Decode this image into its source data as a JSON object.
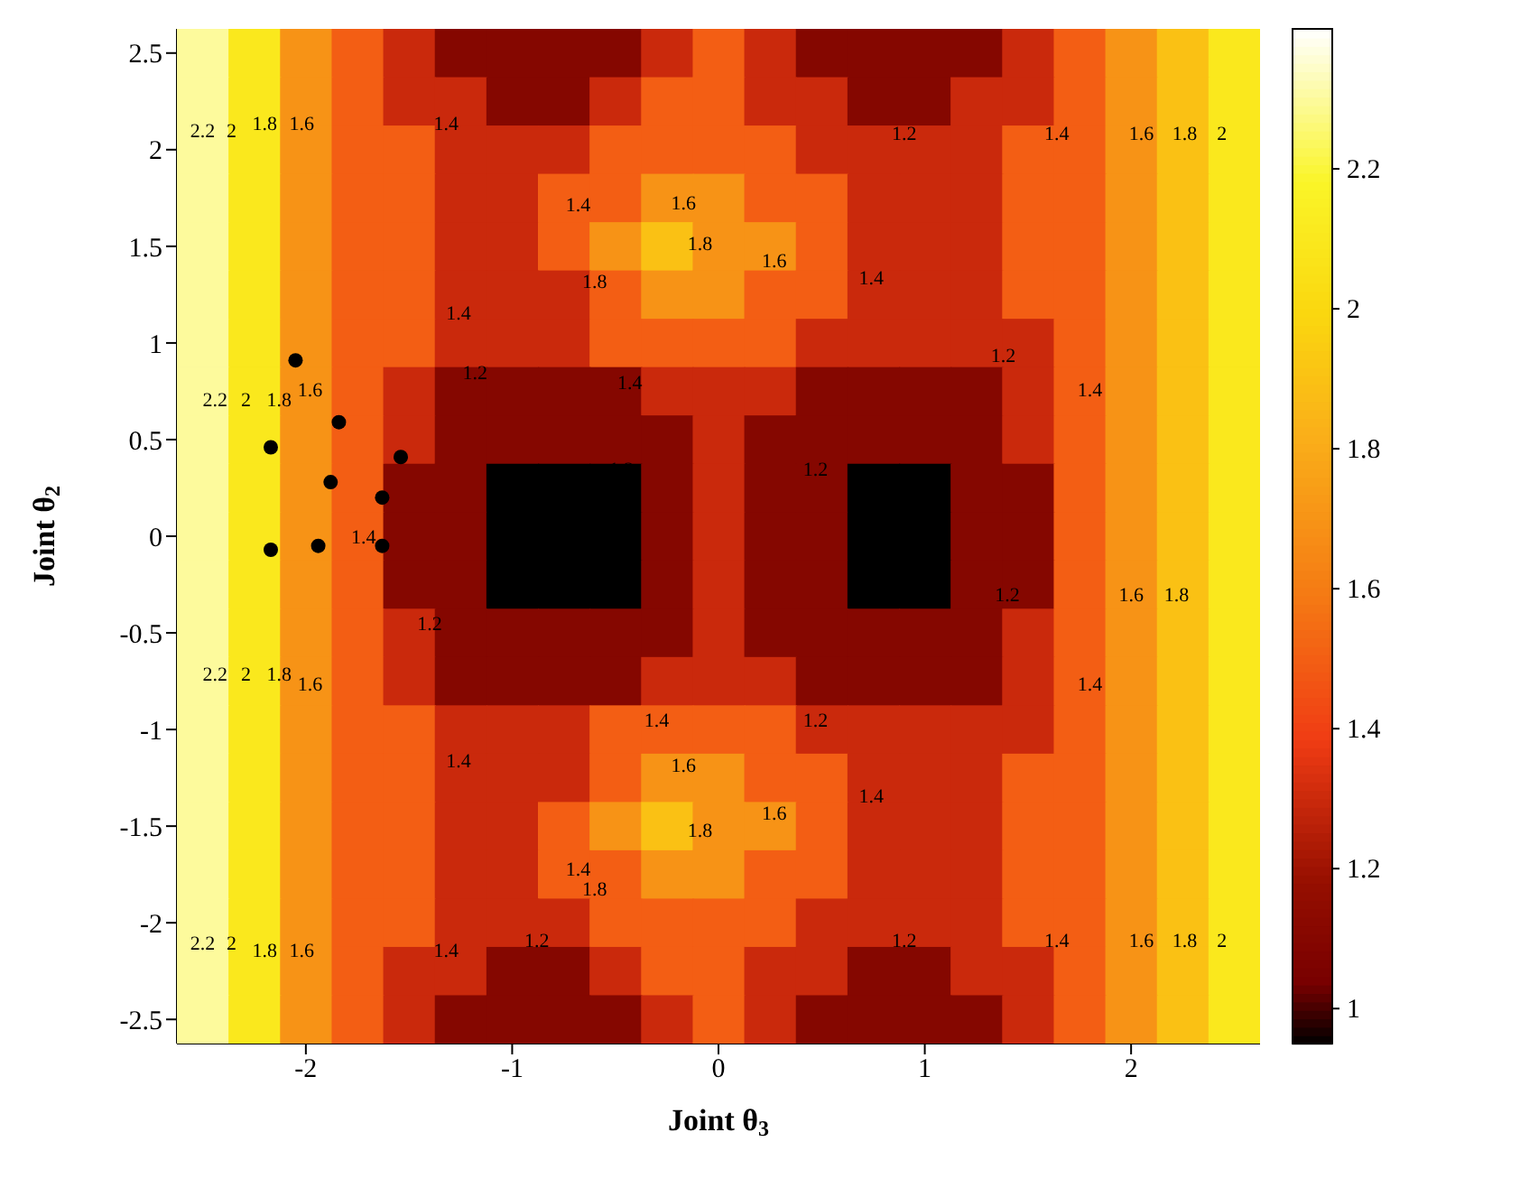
{
  "chart_data": {
    "type": "heatmap",
    "xlabel": "Joint θ$_{3}$",
    "ylabel": "Joint θ$_{2}$",
    "categories": [
      null,
      null,
      "-2",
      null,
      null,
      null,
      "-1",
      null,
      null,
      null,
      "0",
      null,
      null,
      null,
      "1",
      null,
      null,
      null,
      "2",
      null,
      null
    ],
    "y_categories": [
      "2.5",
      null,
      "2",
      null,
      "1.5",
      null,
      "1",
      null,
      "0.5",
      null,
      "0",
      null,
      "-0.5",
      null,
      "-1",
      null,
      "-1.5",
      null,
      "-2",
      null,
      "-2.5"
    ],
    "clim": [
      0.95,
      2.4
    ],
    "cticks": [
      1,
      1.2,
      1.4,
      1.6,
      1.8,
      2,
      2.2
    ],
    "cells": [
      [
        2.3,
        2.1,
        1.7,
        1.5,
        1.3,
        1.1,
        1.1,
        1.1,
        1.1,
        1.3,
        1.5,
        1.3,
        1.1,
        1.1,
        1.1,
        1.1,
        1.3,
        1.5,
        1.7,
        1.9,
        2.1
      ],
      [
        2.3,
        2.1,
        1.7,
        1.5,
        1.3,
        1.3,
        1.1,
        1.1,
        1.3,
        1.5,
        1.5,
        1.3,
        1.3,
        1.1,
        1.1,
        1.3,
        1.3,
        1.5,
        1.7,
        1.9,
        2.1
      ],
      [
        2.3,
        2.1,
        1.7,
        1.5,
        1.5,
        1.3,
        1.3,
        1.3,
        1.5,
        1.5,
        1.5,
        1.5,
        1.3,
        1.3,
        1.3,
        1.3,
        1.5,
        1.5,
        1.7,
        1.9,
        2.1
      ],
      [
        2.3,
        2.1,
        1.7,
        1.5,
        1.5,
        1.3,
        1.3,
        1.5,
        1.5,
        1.7,
        1.7,
        1.5,
        1.5,
        1.3,
        1.3,
        1.3,
        1.5,
        1.5,
        1.7,
        1.9,
        2.1
      ],
      [
        2.3,
        2.1,
        1.7,
        1.5,
        1.5,
        1.3,
        1.3,
        1.5,
        1.7,
        1.9,
        1.7,
        1.7,
        1.5,
        1.3,
        1.3,
        1.3,
        1.5,
        1.5,
        1.7,
        1.9,
        2.1
      ],
      [
        2.3,
        2.1,
        1.7,
        1.5,
        1.5,
        1.3,
        1.3,
        1.3,
        1.5,
        1.7,
        1.7,
        1.5,
        1.5,
        1.3,
        1.3,
        1.3,
        1.5,
        1.5,
        1.7,
        1.9,
        2.1
      ],
      [
        2.3,
        2.1,
        1.7,
        1.5,
        1.5,
        1.3,
        1.3,
        1.3,
        1.5,
        1.5,
        1.5,
        1.5,
        1.3,
        1.3,
        1.3,
        1.3,
        1.3,
        1.5,
        1.7,
        1.9,
        2.1
      ],
      [
        2.3,
        2.1,
        1.7,
        1.5,
        1.3,
        1.1,
        1.1,
        1.1,
        1.1,
        1.3,
        1.3,
        1.3,
        1.1,
        1.1,
        1.1,
        1.1,
        1.3,
        1.5,
        1.7,
        1.9,
        2.1
      ],
      [
        2.3,
        2.1,
        1.7,
        1.5,
        1.3,
        1.1,
        1.1,
        1.1,
        1.1,
        1.1,
        1.3,
        1.1,
        1.1,
        1.1,
        1.1,
        1.1,
        1.3,
        1.5,
        1.7,
        1.9,
        2.1
      ],
      [
        2.3,
        2.1,
        1.7,
        1.5,
        1.1,
        1.1,
        0.9,
        0.9,
        0.9,
        1.1,
        1.3,
        1.1,
        1.1,
        0.9,
        0.9,
        1.1,
        1.1,
        1.5,
        1.7,
        1.9,
        2.1
      ],
      [
        2.3,
        2.1,
        1.7,
        1.5,
        1.1,
        1.1,
        0.9,
        0.9,
        0.9,
        1.1,
        1.3,
        1.1,
        1.1,
        0.9,
        0.9,
        1.1,
        1.1,
        1.5,
        1.7,
        1.9,
        2.1
      ],
      [
        2.3,
        2.1,
        1.7,
        1.5,
        1.1,
        1.1,
        0.9,
        0.9,
        0.9,
        1.1,
        1.3,
        1.1,
        1.1,
        0.9,
        0.9,
        1.1,
        1.1,
        1.5,
        1.7,
        1.9,
        2.1
      ],
      [
        2.3,
        2.1,
        1.7,
        1.5,
        1.3,
        1.1,
        1.1,
        1.1,
        1.1,
        1.1,
        1.3,
        1.1,
        1.1,
        1.1,
        1.1,
        1.1,
        1.3,
        1.5,
        1.7,
        1.9,
        2.1
      ],
      [
        2.3,
        2.1,
        1.7,
        1.5,
        1.3,
        1.1,
        1.1,
        1.1,
        1.1,
        1.3,
        1.3,
        1.3,
        1.1,
        1.1,
        1.1,
        1.1,
        1.3,
        1.5,
        1.7,
        1.9,
        2.1
      ],
      [
        2.3,
        2.1,
        1.7,
        1.5,
        1.5,
        1.3,
        1.3,
        1.3,
        1.5,
        1.5,
        1.5,
        1.5,
        1.3,
        1.3,
        1.3,
        1.3,
        1.3,
        1.5,
        1.7,
        1.9,
        2.1
      ],
      [
        2.3,
        2.1,
        1.7,
        1.5,
        1.5,
        1.3,
        1.3,
        1.3,
        1.5,
        1.7,
        1.7,
        1.5,
        1.5,
        1.3,
        1.3,
        1.3,
        1.5,
        1.5,
        1.7,
        1.9,
        2.1
      ],
      [
        2.3,
        2.1,
        1.7,
        1.5,
        1.5,
        1.3,
        1.3,
        1.5,
        1.7,
        1.9,
        1.7,
        1.7,
        1.5,
        1.3,
        1.3,
        1.3,
        1.5,
        1.5,
        1.7,
        1.9,
        2.1
      ],
      [
        2.3,
        2.1,
        1.7,
        1.5,
        1.5,
        1.3,
        1.3,
        1.5,
        1.5,
        1.7,
        1.7,
        1.5,
        1.5,
        1.3,
        1.3,
        1.3,
        1.5,
        1.5,
        1.7,
        1.9,
        2.1
      ],
      [
        2.3,
        2.1,
        1.7,
        1.5,
        1.5,
        1.3,
        1.3,
        1.3,
        1.5,
        1.5,
        1.5,
        1.5,
        1.3,
        1.3,
        1.3,
        1.3,
        1.5,
        1.5,
        1.7,
        1.9,
        2.1
      ],
      [
        2.3,
        2.1,
        1.7,
        1.5,
        1.3,
        1.3,
        1.1,
        1.1,
        1.3,
        1.5,
        1.5,
        1.3,
        1.3,
        1.1,
        1.1,
        1.3,
        1.3,
        1.5,
        1.7,
        1.9,
        2.1
      ],
      [
        2.3,
        2.1,
        1.7,
        1.5,
        1.3,
        1.1,
        1.1,
        1.1,
        1.1,
        1.3,
        1.5,
        1.3,
        1.1,
        1.1,
        1.1,
        1.1,
        1.3,
        1.5,
        1.7,
        1.9,
        2.1
      ]
    ],
    "annotations": [
      "2.2",
      "2",
      "1.8",
      "1.6",
      "1.4",
      "1.2",
      "1.4",
      "1.6",
      "1.8",
      "1.8",
      "1.6",
      "1.4",
      "1.4",
      "1.2",
      "1.4",
      "1.2",
      "1.2",
      "1.2",
      "1.4",
      "1.4",
      "1.6",
      "1.8",
      "2",
      "1.6",
      "1.8",
      "2",
      "2.2",
      "1.4",
      "1.2",
      "2.2",
      "2",
      "1.8",
      "1.6",
      "1.4",
      "1.2",
      "1.2",
      "1.4",
      "1.6",
      "1.8",
      "1.8",
      "1.6",
      "1.4",
      "1.4",
      "1.4",
      "1.2",
      "1.4",
      "1.4",
      "1.6",
      "1.8",
      "2",
      "1.6",
      "1.8",
      "2",
      "2.2",
      "1.6",
      "1.8",
      "1.2"
    ]
  }
}
